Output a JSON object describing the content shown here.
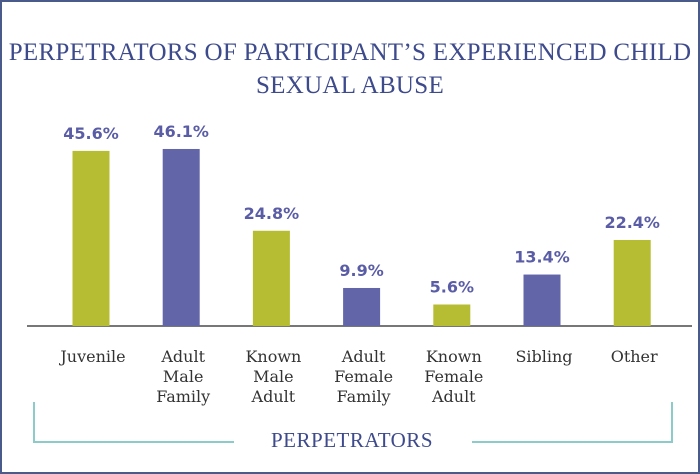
{
  "chart_data": {
    "type": "bar",
    "title": "PERPETRATORS OF PARTICIPANT’S EXPERIENCED CHILD SEXUAL ABUSE",
    "x_label": "PERPETRATORS",
    "categories": [
      "Juvenile",
      "Adult Male Family",
      "Known Male Adult",
      "Adult Female Family",
      "Known Female Adult",
      "Sibling",
      "Other"
    ],
    "values": [
      45.6,
      46.1,
      24.8,
      9.9,
      5.6,
      13.4,
      22.4
    ],
    "value_labels": [
      "45.6%",
      "46.1%",
      "24.8%",
      "9.9%",
      "5.6%",
      "13.4%",
      "22.4%"
    ],
    "colors": [
      "#b6bd33",
      "#6265a8",
      "#b6bd33",
      "#6265a8",
      "#b6bd33",
      "#6265a8",
      "#b6bd33"
    ]
  }
}
